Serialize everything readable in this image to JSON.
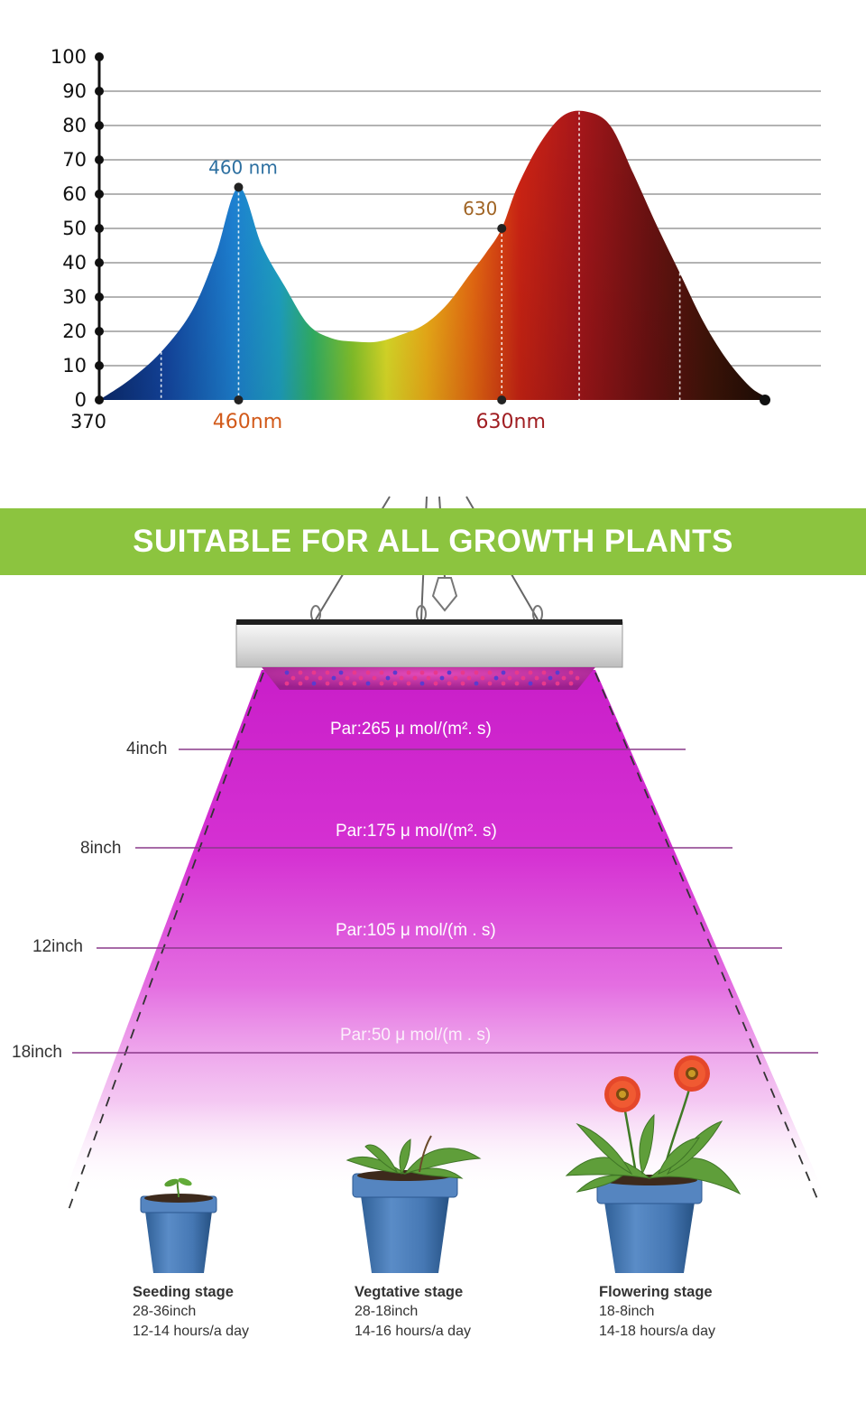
{
  "chart_data": {
    "type": "area",
    "title": "",
    "xlabel": "",
    "ylabel": "",
    "ylim": [
      0,
      100
    ],
    "yticks": [
      0,
      10,
      20,
      30,
      40,
      50,
      60,
      70,
      80,
      90,
      100
    ],
    "xticks": [
      {
        "value": 370,
        "label": "370"
      },
      {
        "value": 460,
        "label": "460nm"
      },
      {
        "value": 630,
        "label": "630nm"
      }
    ],
    "series": [
      {
        "x": [
          370,
          390,
          410,
          430,
          445,
          460,
          475,
          490,
          505,
          520,
          535,
          550,
          565,
          580,
          595,
          610,
          620,
          630,
          640,
          655,
          670,
          685,
          700,
          715,
          730,
          745,
          760,
          775,
          790,
          800
        ],
        "values": [
          0,
          6,
          14,
          26,
          42,
          62,
          45,
          33,
          22,
          18,
          17,
          17,
          19,
          22,
          28,
          37,
          43,
          50,
          62,
          75,
          83,
          84,
          80,
          66,
          51,
          37,
          23,
          12,
          4,
          1
        ]
      }
    ],
    "annotations": [
      {
        "label": "460 nm",
        "x": 460,
        "y": 62,
        "color": "#2c6fa0"
      },
      {
        "label": "630",
        "x": 630,
        "y": 50,
        "color": "#a06424"
      }
    ],
    "grid": true
  },
  "banner": {
    "title": "SUITABLE FOR ALL GROWTH PLANTS"
  },
  "distances": [
    {
      "label": "4inch",
      "par": "Par:265 μ mol/(m². s)"
    },
    {
      "label": "8inch",
      "par": "Par:175 μ mol/(m². s)"
    },
    {
      "label": "12inch",
      "par": "Par:105 μ mol/(ṁ . s)"
    },
    {
      "label": "18inch",
      "par": "Par:50 μ mol/(m . s)"
    }
  ],
  "stages": [
    {
      "name": "Seeding stage",
      "distance": "28-36inch",
      "hours": "12-14 hours/a day"
    },
    {
      "name": "Vegtative stage",
      "distance": "28-18inch",
      "hours": "14-16 hours/a day"
    },
    {
      "name": "Flowering stage",
      "distance": "18-8inch",
      "hours": "14-18 hours/a day"
    }
  ],
  "colors": {
    "banner": "#8cc43f",
    "beam": "#d21ed2",
    "led": "#c8228f"
  }
}
